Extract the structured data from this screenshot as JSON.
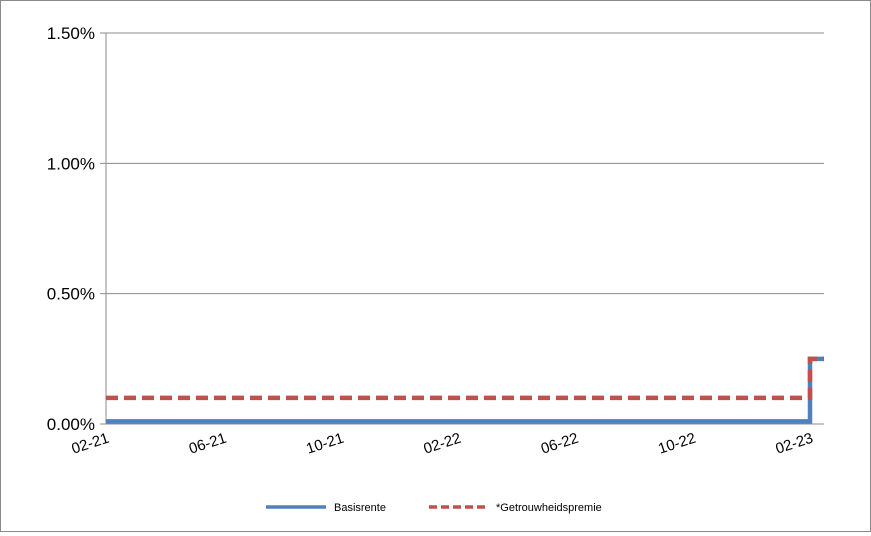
{
  "chart_data": {
    "type": "line",
    "title": "",
    "xlabel": "",
    "ylabel": "",
    "y_tick_labels": [
      "0.00%",
      "0.50%",
      "1.00%",
      "1.50%"
    ],
    "x_tick_labels": [
      "02-21",
      "06-21",
      "10-21",
      "02-22",
      "06-22",
      "10-22",
      "02-23"
    ],
    "ylim": [
      0,
      1.5
    ],
    "xlim": [
      "2021-02",
      "2023-02"
    ],
    "grid": true,
    "legend_position": "bottom",
    "series": [
      {
        "name": "Basisrente",
        "color": "#4f81bd",
        "style": "solid",
        "points": [
          {
            "x": "2021-02",
            "y": 0.01
          },
          {
            "x": "2023-02",
            "y": 0.01
          },
          {
            "x": "2023-02",
            "y": 0.25
          },
          {
            "x": "end",
            "y": 0.25
          }
        ]
      },
      {
        "name": "*Getrouwheidspremie",
        "color": "#c0504d",
        "style": "dashed",
        "points": [
          {
            "x": "2021-02",
            "y": 0.1
          },
          {
            "x": "2023-02",
            "y": 0.1
          },
          {
            "x": "2023-02",
            "y": 0.25
          },
          {
            "x": "end",
            "y": 0.25
          }
        ]
      }
    ]
  }
}
